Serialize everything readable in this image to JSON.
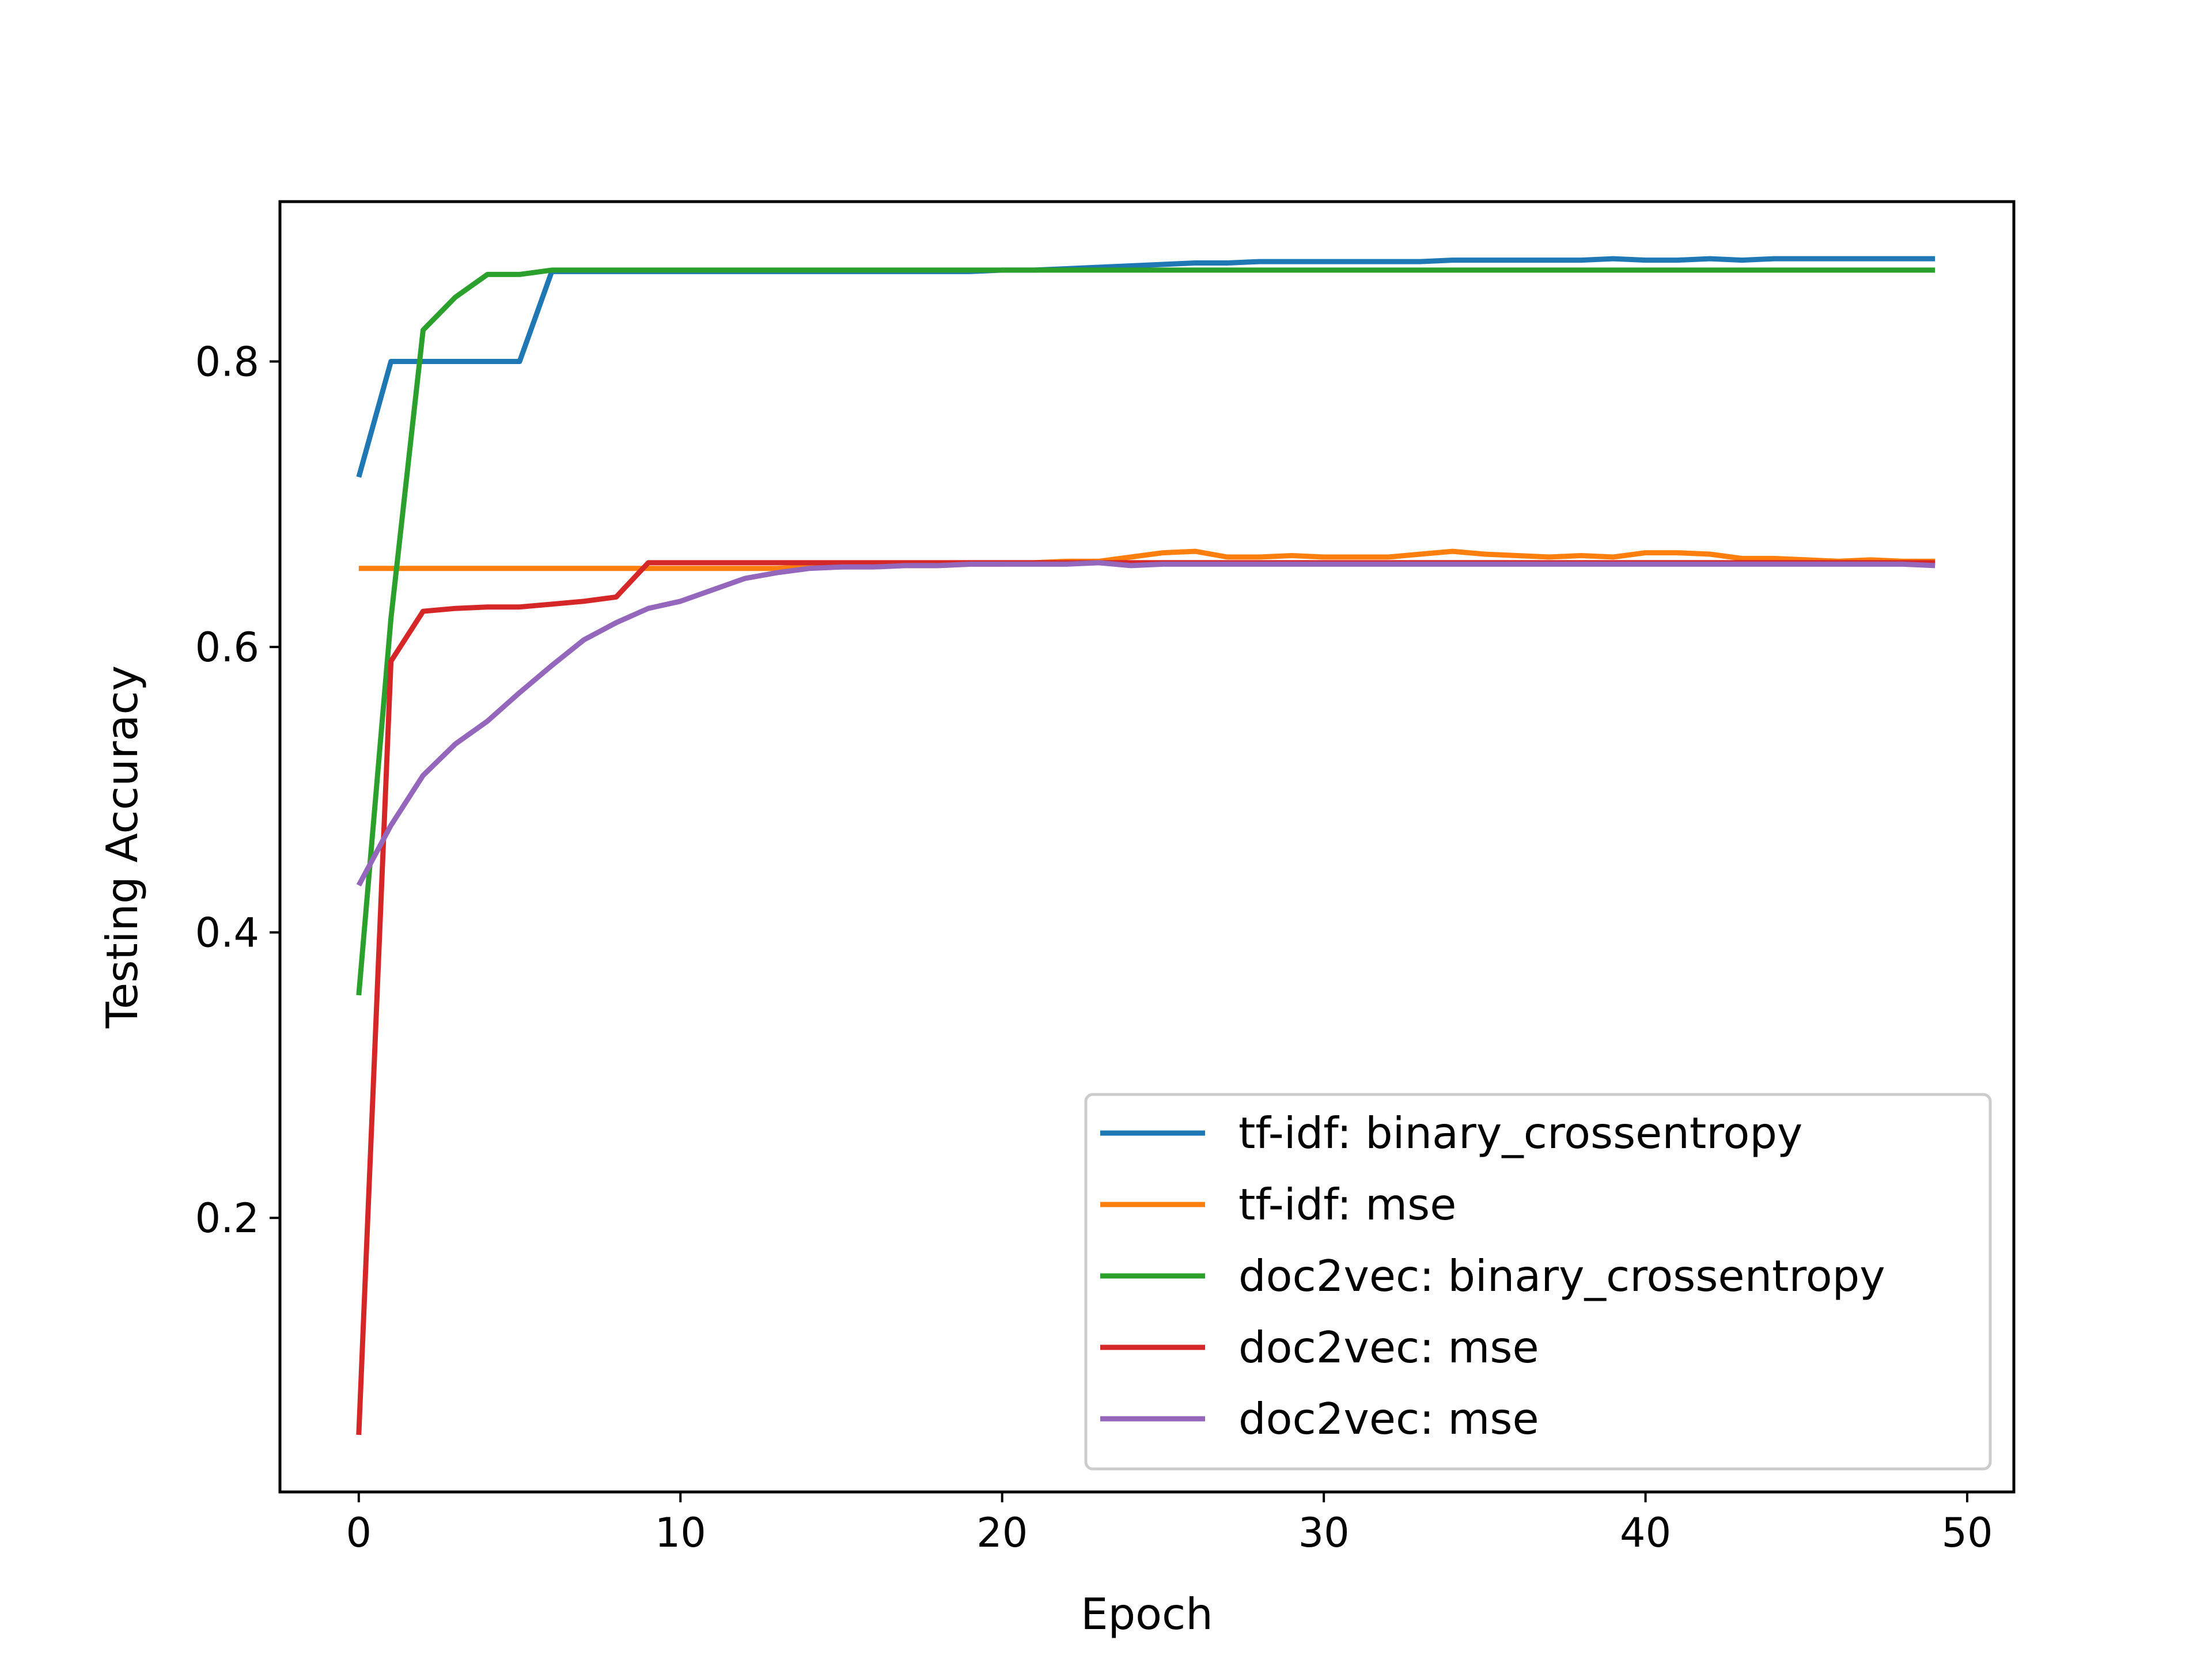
{
  "chart_data": {
    "type": "line",
    "xlabel": "Epoch",
    "ylabel": "Testing Accuracy",
    "xlim": [
      -2.45,
      51.45
    ],
    "ylim": [
      0.008,
      0.912
    ],
    "xticks": [
      0,
      10,
      20,
      30,
      40,
      50
    ],
    "yticks": [
      0.2,
      0.4,
      0.6,
      0.8
    ],
    "xtick_labels": [
      "0",
      "10",
      "20",
      "30",
      "40",
      "50"
    ],
    "ytick_labels": [
      "0.2",
      "0.4",
      "0.6",
      "0.8"
    ],
    "grid": false,
    "legend_position": "lower-right",
    "x": [
      0,
      1,
      2,
      3,
      4,
      5,
      6,
      7,
      8,
      9,
      10,
      11,
      12,
      13,
      14,
      15,
      16,
      17,
      18,
      19,
      20,
      21,
      22,
      23,
      24,
      25,
      26,
      27,
      28,
      29,
      30,
      31,
      32,
      33,
      34,
      35,
      36,
      37,
      38,
      39,
      40,
      41,
      42,
      43,
      44,
      45,
      46,
      47,
      48,
      49
    ],
    "series": [
      {
        "name": "tf-idf: binary_crossentropy",
        "color": "#1f77b4",
        "values": [
          0.719,
          0.8,
          0.8,
          0.8,
          0.8,
          0.8,
          0.863,
          0.863,
          0.863,
          0.863,
          0.863,
          0.863,
          0.863,
          0.863,
          0.863,
          0.863,
          0.863,
          0.863,
          0.863,
          0.863,
          0.864,
          0.864,
          0.865,
          0.866,
          0.867,
          0.868,
          0.869,
          0.869,
          0.87,
          0.87,
          0.87,
          0.87,
          0.87,
          0.87,
          0.871,
          0.871,
          0.871,
          0.871,
          0.871,
          0.872,
          0.871,
          0.871,
          0.872,
          0.871,
          0.872,
          0.872,
          0.872,
          0.872,
          0.872,
          0.872
        ]
      },
      {
        "name": "tf-idf: mse",
        "color": "#ff7f0e",
        "values": [
          0.655,
          0.655,
          0.655,
          0.655,
          0.655,
          0.655,
          0.655,
          0.655,
          0.655,
          0.655,
          0.655,
          0.655,
          0.655,
          0.655,
          0.656,
          0.656,
          0.657,
          0.657,
          0.657,
          0.658,
          0.658,
          0.659,
          0.66,
          0.66,
          0.663,
          0.666,
          0.667,
          0.663,
          0.663,
          0.664,
          0.663,
          0.663,
          0.663,
          0.665,
          0.667,
          0.665,
          0.664,
          0.663,
          0.664,
          0.663,
          0.666,
          0.666,
          0.665,
          0.662,
          0.662,
          0.661,
          0.66,
          0.661,
          0.66,
          0.66
        ]
      },
      {
        "name": "doc2vec: binary_crossentropy",
        "color": "#2ca02c",
        "values": [
          0.356,
          0.62,
          0.822,
          0.845,
          0.861,
          0.861,
          0.864,
          0.864,
          0.864,
          0.864,
          0.864,
          0.864,
          0.864,
          0.864,
          0.864,
          0.864,
          0.864,
          0.864,
          0.864,
          0.864,
          0.864,
          0.864,
          0.864,
          0.864,
          0.864,
          0.864,
          0.864,
          0.864,
          0.864,
          0.864,
          0.864,
          0.864,
          0.864,
          0.864,
          0.864,
          0.864,
          0.864,
          0.864,
          0.864,
          0.864,
          0.864,
          0.864,
          0.864,
          0.864,
          0.864,
          0.864,
          0.864,
          0.864,
          0.864,
          0.864
        ]
      },
      {
        "name": "doc2vec: mse",
        "color": "#d62728",
        "values": [
          0.048,
          0.59,
          0.625,
          0.627,
          0.628,
          0.628,
          0.63,
          0.632,
          0.635,
          0.659,
          0.659,
          0.659,
          0.659,
          0.659,
          0.659,
          0.659,
          0.659,
          0.659,
          0.659,
          0.659,
          0.659,
          0.659,
          0.659,
          0.659,
          0.659,
          0.659,
          0.659,
          0.659,
          0.659,
          0.659,
          0.659,
          0.659,
          0.659,
          0.659,
          0.659,
          0.659,
          0.659,
          0.659,
          0.659,
          0.659,
          0.659,
          0.659,
          0.659,
          0.659,
          0.659,
          0.659,
          0.659,
          0.659,
          0.659,
          0.659
        ]
      },
      {
        "name": "doc2vec: mse",
        "color": "#9467bd",
        "values": [
          0.433,
          0.475,
          0.51,
          0.532,
          0.548,
          0.568,
          0.587,
          0.605,
          0.617,
          0.627,
          0.632,
          0.64,
          0.648,
          0.652,
          0.655,
          0.656,
          0.656,
          0.657,
          0.657,
          0.658,
          0.658,
          0.658,
          0.658,
          0.659,
          0.657,
          0.658,
          0.658,
          0.658,
          0.658,
          0.658,
          0.658,
          0.658,
          0.658,
          0.658,
          0.658,
          0.658,
          0.658,
          0.658,
          0.658,
          0.658,
          0.658,
          0.658,
          0.658,
          0.658,
          0.658,
          0.658,
          0.658,
          0.658,
          0.658,
          0.657
        ]
      }
    ]
  }
}
